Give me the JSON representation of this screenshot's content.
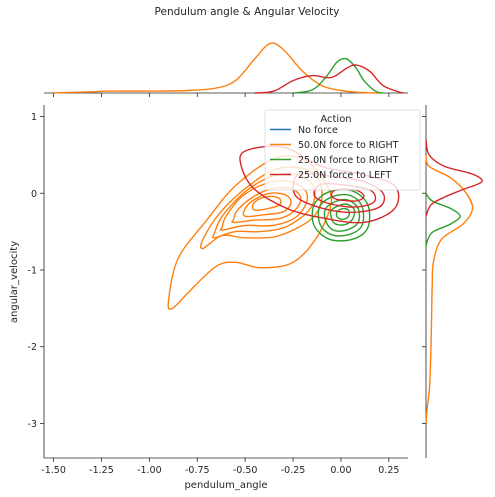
{
  "chart_data": {
    "type": "kde_jointplot",
    "title": "Pendulum angle & Angular Velocity",
    "xlabel": "pendulum_angle",
    "ylabel": "angular_velocity",
    "xlim": [
      -1.55,
      0.35
    ],
    "ylim": [
      -3.45,
      1.15
    ],
    "xticks": [
      -1.5,
      -1.25,
      -1.0,
      -0.75,
      -0.5,
      -0.25,
      0.0,
      0.25
    ],
    "xtick_labels": [
      "-1.50",
      "-1.25",
      "-1.00",
      "-0.75",
      "-0.50",
      "-0.25",
      "0.00",
      "0.25"
    ],
    "yticks": [
      1,
      0,
      -1,
      -2,
      -3
    ],
    "ytick_labels": [
      "1",
      "0",
      "-1",
      "-2",
      "-3"
    ],
    "grid": false,
    "legend": {
      "title": "Action",
      "placement": "upper-right",
      "entries": [
        {
          "label": "No force",
          "color": "#1f77b4"
        },
        {
          "label": "50.0N force to RIGHT",
          "color": "#ff7f0e"
        },
        {
          "label": "25.0N force to RIGHT",
          "color": "#2ca02c"
        },
        {
          "label": "25.0N force to LEFT",
          "color": "#d62728"
        }
      ]
    },
    "series": [
      {
        "name": "50.0N force to RIGHT",
        "color": "#ff7f0e",
        "center": [
          -0.42,
          -0.12
        ],
        "contours": [
          [
            [
              -0.88,
              -1.5
            ],
            [
              -0.78,
              -1.25
            ],
            [
              -0.65,
              -0.95
            ],
            [
              -0.55,
              -0.9
            ],
            [
              -0.42,
              -0.97
            ],
            [
              -0.25,
              -0.9
            ],
            [
              -0.12,
              -0.55
            ],
            [
              -0.05,
              -0.1
            ],
            [
              -0.1,
              0.2
            ],
            [
              -0.2,
              0.45
            ],
            [
              -0.35,
              0.45
            ],
            [
              -0.55,
              0.1
            ],
            [
              -0.7,
              -0.35
            ],
            [
              -0.85,
              -0.85
            ],
            [
              -0.9,
              -1.4
            ]
          ],
          [
            [
              -0.72,
              -0.72
            ],
            [
              -0.62,
              -0.55
            ],
            [
              -0.5,
              -0.58
            ],
            [
              -0.32,
              -0.55
            ],
            [
              -0.14,
              -0.3
            ],
            [
              -0.1,
              0.05
            ],
            [
              -0.17,
              0.3
            ],
            [
              -0.33,
              0.32
            ],
            [
              -0.48,
              0.1
            ],
            [
              -0.63,
              -0.25
            ],
            [
              -0.72,
              -0.6
            ]
          ],
          [
            [
              -0.66,
              -0.58
            ],
            [
              -0.55,
              -0.5
            ],
            [
              -0.42,
              -0.5
            ],
            [
              -0.28,
              -0.43
            ],
            [
              -0.16,
              -0.2
            ],
            [
              -0.14,
              0.06
            ],
            [
              -0.22,
              0.24
            ],
            [
              -0.36,
              0.22
            ],
            [
              -0.5,
              0.02
            ],
            [
              -0.62,
              -0.3
            ],
            [
              -0.66,
              -0.52
            ]
          ],
          [
            [
              -0.62,
              -0.48
            ],
            [
              -0.5,
              -0.42
            ],
            [
              -0.36,
              -0.42
            ],
            [
              -0.24,
              -0.32
            ],
            [
              -0.18,
              -0.12
            ],
            [
              -0.19,
              0.05
            ],
            [
              -0.28,
              0.16
            ],
            [
              -0.4,
              0.12
            ],
            [
              -0.52,
              -0.05
            ],
            [
              -0.6,
              -0.3
            ],
            [
              -0.62,
              -0.44
            ]
          ],
          [
            [
              -0.56,
              -0.38
            ],
            [
              -0.45,
              -0.35
            ],
            [
              -0.32,
              -0.33
            ],
            [
              -0.24,
              -0.22
            ],
            [
              -0.21,
              -0.06
            ],
            [
              -0.26,
              0.06
            ],
            [
              -0.36,
              0.06
            ],
            [
              -0.46,
              -0.05
            ],
            [
              -0.54,
              -0.22
            ],
            [
              -0.56,
              -0.34
            ]
          ],
          [
            [
              -0.5,
              -0.3
            ],
            [
              -0.4,
              -0.28
            ],
            [
              -0.3,
              -0.24
            ],
            [
              -0.26,
              -0.12
            ],
            [
              -0.29,
              -0.02
            ],
            [
              -0.37,
              0.0
            ],
            [
              -0.45,
              -0.08
            ],
            [
              -0.5,
              -0.2
            ]
          ],
          [
            [
              -0.45,
              -0.22
            ],
            [
              -0.38,
              -0.2
            ],
            [
              -0.32,
              -0.15
            ],
            [
              -0.32,
              -0.07
            ],
            [
              -0.37,
              -0.04
            ],
            [
              -0.43,
              -0.08
            ],
            [
              -0.46,
              -0.15
            ]
          ]
        ],
        "marginal_x": [
          [
            -1.5,
            0.002
          ],
          [
            -1.3,
            0.02
          ],
          [
            -1.2,
            0.03
          ],
          [
            -1.0,
            0.03
          ],
          [
            -0.8,
            0.04
          ],
          [
            -0.65,
            0.08
          ],
          [
            -0.55,
            0.2
          ],
          [
            -0.45,
            0.55
          ],
          [
            -0.37,
            0.8
          ],
          [
            -0.3,
            0.7
          ],
          [
            -0.2,
            0.35
          ],
          [
            -0.1,
            0.12
          ],
          [
            0.0,
            0.04
          ],
          [
            0.1,
            0.01
          ],
          [
            0.2,
            0.0
          ]
        ],
        "marginal_y": [
          [
            0.5,
            0.0
          ],
          [
            0.35,
            0.05
          ],
          [
            0.2,
            0.4
          ],
          [
            0.0,
            0.65
          ],
          [
            -0.2,
            0.75
          ],
          [
            -0.4,
            0.6
          ],
          [
            -0.6,
            0.25
          ],
          [
            -0.9,
            0.12
          ],
          [
            -1.2,
            0.1
          ],
          [
            -1.6,
            0.09
          ],
          [
            -2.0,
            0.08
          ],
          [
            -2.5,
            0.06
          ],
          [
            -2.8,
            0.02
          ],
          [
            -3.0,
            0.0
          ]
        ]
      },
      {
        "name": "25.0N force to RIGHT",
        "color": "#2ca02c",
        "center": [
          0.0,
          -0.28
        ],
        "contours": [
          [
            [
              -0.14,
              -0.15
            ],
            [
              -0.06,
              0.02
            ],
            [
              0.06,
              0.03
            ],
            [
              0.14,
              -0.15
            ],
            [
              0.14,
              -0.45
            ],
            [
              0.06,
              -0.6
            ],
            [
              -0.06,
              -0.6
            ],
            [
              -0.14,
              -0.42
            ]
          ],
          [
            [
              -0.11,
              -0.17
            ],
            [
              -0.04,
              -0.04
            ],
            [
              0.05,
              -0.03
            ],
            [
              0.11,
              -0.17
            ],
            [
              0.11,
              -0.42
            ],
            [
              0.04,
              -0.54
            ],
            [
              -0.05,
              -0.54
            ],
            [
              -0.11,
              -0.4
            ]
          ],
          [
            [
              -0.08,
              -0.2
            ],
            [
              -0.02,
              -0.1
            ],
            [
              0.04,
              -0.09
            ],
            [
              0.09,
              -0.2
            ],
            [
              0.09,
              -0.38
            ],
            [
              0.03,
              -0.48
            ],
            [
              -0.04,
              -0.48
            ],
            [
              -0.08,
              -0.36
            ]
          ],
          [
            [
              -0.05,
              -0.22
            ],
            [
              0.0,
              -0.15
            ],
            [
              0.04,
              -0.15
            ],
            [
              0.07,
              -0.22
            ],
            [
              0.06,
              -0.34
            ],
            [
              0.02,
              -0.41
            ],
            [
              -0.03,
              -0.4
            ],
            [
              -0.05,
              -0.32
            ]
          ],
          [
            [
              -0.02,
              -0.24
            ],
            [
              0.01,
              -0.2
            ],
            [
              0.04,
              -0.22
            ],
            [
              0.04,
              -0.3
            ],
            [
              0.01,
              -0.34
            ],
            [
              -0.02,
              -0.31
            ]
          ]
        ],
        "marginal_x": [
          [
            -0.25,
            0.0
          ],
          [
            -0.15,
            0.05
          ],
          [
            -0.08,
            0.25
          ],
          [
            -0.02,
            0.5
          ],
          [
            0.03,
            0.55
          ],
          [
            0.08,
            0.4
          ],
          [
            0.12,
            0.2
          ],
          [
            0.18,
            0.03
          ],
          [
            0.22,
            0.0
          ]
        ],
        "marginal_y": [
          [
            0.0,
            0.0
          ],
          [
            -0.1,
            0.1
          ],
          [
            -0.2,
            0.4
          ],
          [
            -0.3,
            0.55
          ],
          [
            -0.4,
            0.4
          ],
          [
            -0.5,
            0.12
          ],
          [
            -0.6,
            0.03
          ],
          [
            -0.7,
            0.0
          ]
        ]
      },
      {
        "name": "25.0N force to LEFT",
        "color": "#d62728",
        "center": [
          0.05,
          -0.05
        ],
        "contours": [
          [
            [
              -0.5,
              0.55
            ],
            [
              -0.3,
              0.6
            ],
            [
              -0.1,
              0.35
            ],
            [
              0.1,
              0.25
            ],
            [
              0.28,
              0.1
            ],
            [
              0.28,
              -0.2
            ],
            [
              0.12,
              -0.38
            ],
            [
              -0.1,
              -0.32
            ],
            [
              -0.28,
              -0.2
            ],
            [
              -0.45,
              0.05
            ],
            [
              -0.52,
              0.35
            ]
          ],
          [
            [
              -0.22,
              0.25
            ],
            [
              -0.05,
              0.22
            ],
            [
              0.12,
              0.15
            ],
            [
              0.22,
              0.0
            ],
            [
              0.2,
              -0.18
            ],
            [
              0.05,
              -0.25
            ],
            [
              -0.12,
              -0.18
            ],
            [
              -0.24,
              -0.02
            ]
          ],
          [
            [
              -0.1,
              0.12
            ],
            [
              0.04,
              0.1
            ],
            [
              0.16,
              0.03
            ],
            [
              0.17,
              -0.12
            ],
            [
              0.06,
              -0.18
            ],
            [
              -0.08,
              -0.12
            ],
            [
              -0.14,
              -0.02
            ]
          ],
          [
            [
              -0.02,
              0.05
            ],
            [
              0.08,
              0.04
            ],
            [
              0.12,
              -0.04
            ],
            [
              0.08,
              -0.1
            ],
            [
              -0.02,
              -0.08
            ],
            [
              -0.05,
              -0.02
            ]
          ]
        ],
        "marginal_x": [
          [
            -0.45,
            0.0
          ],
          [
            -0.35,
            0.03
          ],
          [
            -0.25,
            0.2
          ],
          [
            -0.15,
            0.28
          ],
          [
            -0.05,
            0.25
          ],
          [
            0.03,
            0.4
          ],
          [
            0.08,
            0.45
          ],
          [
            0.15,
            0.35
          ],
          [
            0.22,
            0.12
          ],
          [
            0.3,
            0.02
          ],
          [
            0.33,
            0.0
          ]
        ],
        "marginal_y": [
          [
            0.7,
            0.0
          ],
          [
            0.5,
            0.05
          ],
          [
            0.35,
            0.3
          ],
          [
            0.25,
            0.75
          ],
          [
            0.15,
            0.9
          ],
          [
            0.05,
            0.6
          ],
          [
            -0.05,
            0.3
          ],
          [
            -0.15,
            0.08
          ],
          [
            -0.3,
            0.0
          ]
        ]
      }
    ]
  }
}
